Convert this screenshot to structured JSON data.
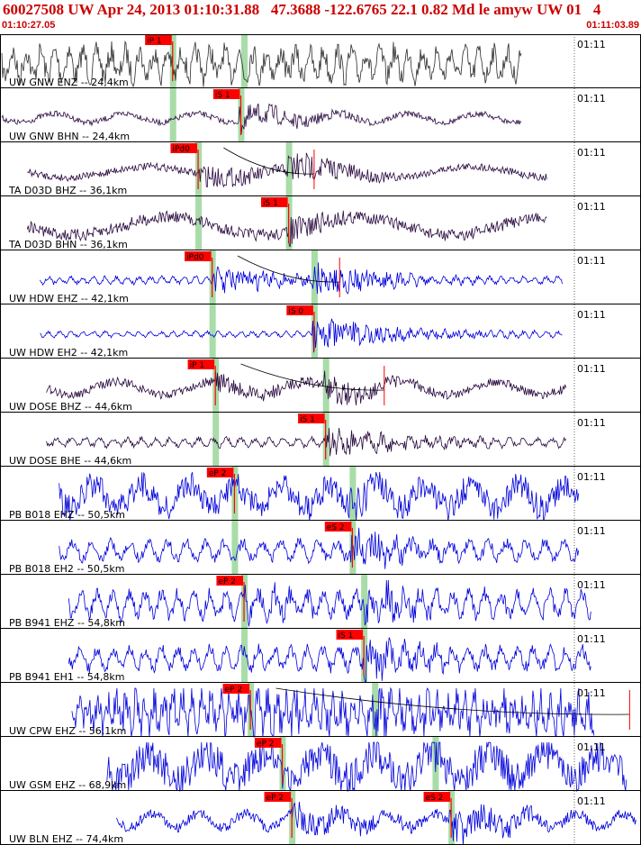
{
  "header": {
    "title": "60027508 UW Apr 24, 2013 01:10:31.88   47.3688 -122.6765 22.1 0.82 Md le amyw UW 01   4",
    "start_time": "01:10:27.05",
    "end_time": "01:11:03.89"
  },
  "colors": {
    "pick_fill": "#ff0000",
    "window_shade": "#a8dca8",
    "trace_blue": "#0000dd",
    "trace_purple": "#2a0a40",
    "trace_gray": "#2b2b2b",
    "grid": "#000000"
  },
  "chart_data": {
    "type": "line",
    "title": "60027508 UW Apr 24, 2013 01:10:31.88   47.3688 -122.6765 22.1 0.82 Md le amyw UW 01   4",
    "x_range": [
      "01:10:27.05",
      "01:11:03.89"
    ],
    "tick_label": "01:11",
    "series": [
      {
        "name": "UW GNW ENZ -- 24,4km",
        "pick": "iP 1",
        "color": "#2b2b2b",
        "start": 0.0,
        "end": 0.815,
        "pick_pos": 0.268,
        "s_arrival": 0.38,
        "shade": [
          0.268,
          0.38
        ],
        "amp": 0.55,
        "noise": 0.45,
        "freq": 0.4
      },
      {
        "name": "UW GNW BHN -- 24,4km",
        "pick": "iS 1",
        "color": "#2a0a40",
        "start": 0.0,
        "end": 0.815,
        "pick_pos": 0.375,
        "s_arrival": 0.375,
        "shade": [
          0.268,
          0.375
        ],
        "amp": 0.6,
        "noise": 0.12,
        "freq": 0.08
      },
      {
        "name": "TA D03D BHZ -- 36,1km",
        "pick": "iPd0",
        "color": "#2a0a40",
        "start": 0.04,
        "end": 0.855,
        "pick_pos": 0.308,
        "s_arrival": 0.45,
        "shade": [
          0.308,
          0.45
        ],
        "amp": 0.75,
        "noise": 0.15,
        "freq": 0.035,
        "coda": 0.49
      },
      {
        "name": "TA D03D BHN -- 36,1km",
        "pick": "iS 1",
        "color": "#2a0a40",
        "start": 0.04,
        "end": 0.855,
        "pick_pos": 0.45,
        "s_arrival": 0.45,
        "shade": [
          0.308,
          0.45
        ],
        "amp": 0.65,
        "noise": 0.25,
        "freq": 0.03
      },
      {
        "name": "UW HDW EHZ -- 42,1km",
        "pick": "iPd0",
        "color": "#0000dd",
        "start": 0.06,
        "end": 0.88,
        "pick_pos": 0.33,
        "s_arrival": 0.49,
        "shade": [
          0.33,
          0.49
        ],
        "amp": 0.7,
        "noise": 0.08,
        "freq": 0.5,
        "coda": 0.53
      },
      {
        "name": "UW HDW EH2 -- 42,1km",
        "pick": "iS 0",
        "color": "#0000dd",
        "start": 0.06,
        "end": 0.88,
        "pick_pos": 0.49,
        "s_arrival": 0.49,
        "shade": [
          0.33,
          0.49
        ],
        "amp": 0.7,
        "noise": 0.06,
        "freq": 0.5
      },
      {
        "name": "UW DOSE BHZ -- 44,6km",
        "pick": "iP 1",
        "color": "#2a0a40",
        "start": 0.07,
        "end": 0.885,
        "pick_pos": 0.335,
        "s_arrival": 0.508,
        "shade": [
          0.335,
          0.508
        ],
        "amp": 0.65,
        "noise": 0.18,
        "freq": 0.06,
        "coda": 0.6
      },
      {
        "name": "UW DOSE BHE -- 44,6km",
        "pick": "iS 1",
        "color": "#2a0a40",
        "start": 0.07,
        "end": 0.885,
        "pick_pos": 0.508,
        "s_arrival": 0.508,
        "shade": [
          0.335,
          0.508
        ],
        "amp": 0.65,
        "noise": 0.1,
        "freq": 0.4
      },
      {
        "name": "PB B018 EHZ -- 50,5km",
        "pick": "eP 2",
        "color": "#0000dd",
        "start": 0.09,
        "end": 0.905,
        "pick_pos": 0.365,
        "s_arrival": 0.55,
        "shade": [
          0.365,
          0.55
        ],
        "amp": 0.85,
        "noise": 0.55,
        "freq": 0.12
      },
      {
        "name": "PB B018 EH2 -- 50,5km",
        "pick": "eS 2",
        "color": "#0000dd",
        "start": 0.09,
        "end": 0.905,
        "pick_pos": 0.55,
        "s_arrival": 0.55,
        "shade": [
          0.365,
          0.55
        ],
        "amp": 0.85,
        "noise": 0.22,
        "freq": 0.3
      },
      {
        "name": "PB B941 EHZ -- 54,8km",
        "pick": "eP 2",
        "color": "#0000dd",
        "start": 0.105,
        "end": 0.925,
        "pick_pos": 0.38,
        "s_arrival": 0.568,
        "shade": [
          0.38,
          0.568
        ],
        "amp": 0.85,
        "noise": 0.3,
        "freq": 0.35
      },
      {
        "name": "PB B941 EH1 -- 54,8km",
        "pick": "iS 1",
        "color": "#0000dd",
        "start": 0.105,
        "end": 0.925,
        "pick_pos": 0.568,
        "s_arrival": 0.568,
        "shade": [
          0.38,
          0.568
        ],
        "amp": 0.85,
        "noise": 0.25,
        "freq": 0.35
      },
      {
        "name": "UW CPW EHZ -- 56,1km",
        "pick": "eP 2",
        "color": "#0000dd",
        "start": 0.11,
        "end": 0.93,
        "pick_pos": 0.39,
        "s_arrival": 0.585,
        "shade": [
          0.39,
          0.585
        ],
        "amp": 0.9,
        "noise": 0.7,
        "freq": 0.6,
        "coda": 0.985
      },
      {
        "name": "UW GSM EHZ -- 68,9km",
        "pick": "eP 2",
        "color": "#0000dd",
        "start": 0.165,
        "end": 0.98,
        "pick_pos": 0.44,
        "s_arrival": 0.68,
        "shade": [
          0.44,
          0.68
        ],
        "amp": 0.95,
        "noise": 0.7,
        "freq": 0.1
      },
      {
        "name": "UW BLN EHZ -- 74,4km",
        "pick": "eP 2",
        "color": "#0000dd",
        "start": 0.18,
        "end": 0.995,
        "pick_pos": 0.455,
        "s_arrival": 0.705,
        "shade": [
          0.455,
          0.705
        ],
        "amp": 0.95,
        "noise": 0.2,
        "freq": 0.12,
        "extra_pick": "eS 2",
        "extra_pick_pos": 0.705
      }
    ]
  }
}
